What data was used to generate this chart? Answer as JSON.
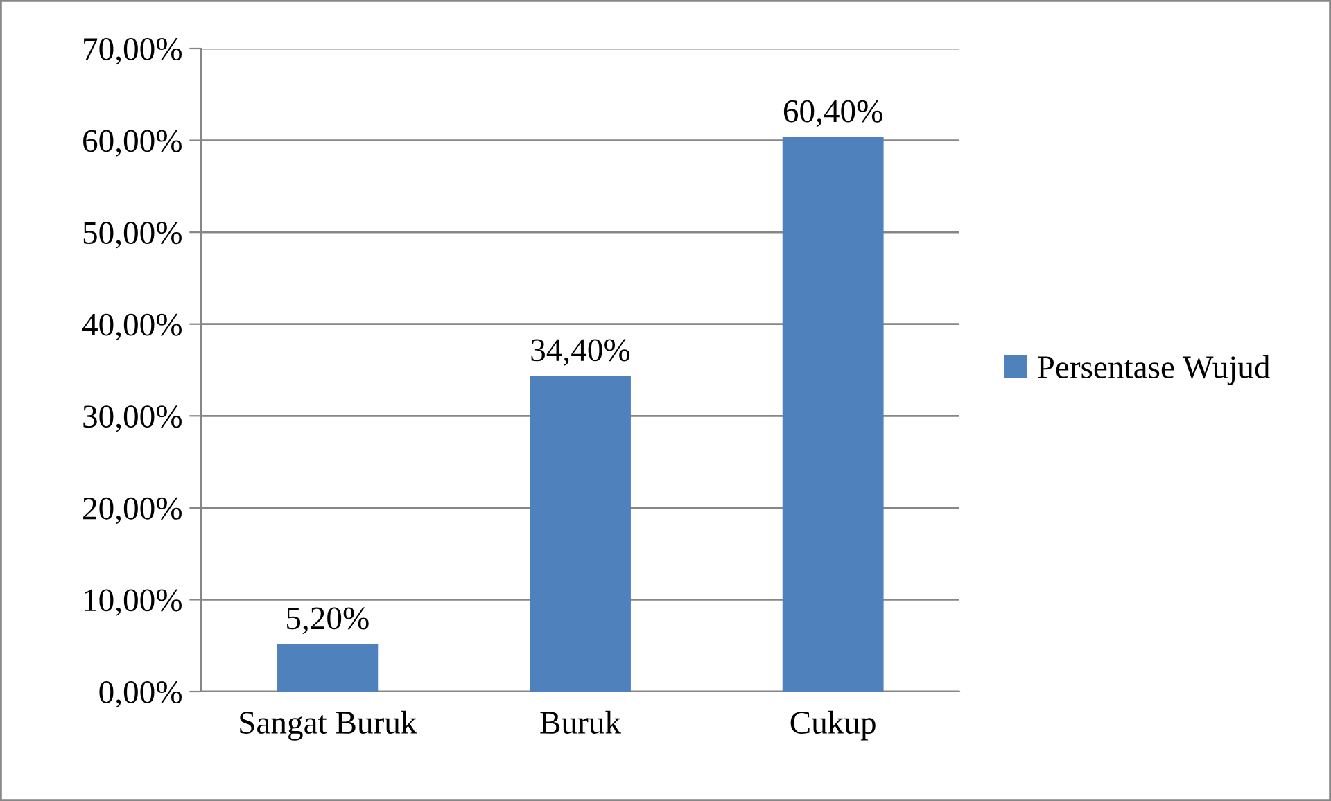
{
  "chart_data": {
    "type": "bar",
    "categories": [
      "Sangat Buruk",
      "Buruk",
      "Cukup"
    ],
    "series": [
      {
        "name": "Persentase Wujud",
        "color": "#4f81bd",
        "values": [
          5.2,
          34.4,
          60.4
        ],
        "value_labels": [
          "5,20%",
          "34,40%",
          "60,40%"
        ]
      }
    ],
    "ylim": [
      0,
      70
    ],
    "yticks": [
      {
        "value": 0,
        "label": "0,00%"
      },
      {
        "value": 10,
        "label": "10,00%"
      },
      {
        "value": 20,
        "label": "20,00%"
      },
      {
        "value": 30,
        "label": "30,00%"
      },
      {
        "value": 40,
        "label": "40,00%"
      },
      {
        "value": 50,
        "label": "50,00%"
      },
      {
        "value": 60,
        "label": "60,00%"
      },
      {
        "value": 70,
        "label": "70,00%"
      }
    ],
    "grid": "y",
    "legend": "right"
  }
}
